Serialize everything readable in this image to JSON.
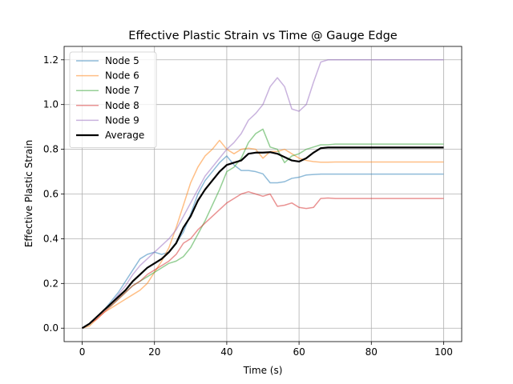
{
  "chart_data": {
    "type": "line",
    "title": "Effective Plastic Strain vs Time @ Gauge Edge",
    "xlabel": "Time (s)",
    "ylabel": "Effective Plastic Strain",
    "xlim": [
      -5,
      105
    ],
    "ylim": [
      -0.06,
      1.26
    ],
    "xticks": [
      0,
      20,
      40,
      60,
      80,
      100
    ],
    "xtick_labels": [
      "0",
      "20",
      "40",
      "60",
      "80",
      "100"
    ],
    "yticks": [
      0.0,
      0.2,
      0.4,
      0.6,
      0.8,
      1.0,
      1.2
    ],
    "ytick_labels": [
      "0.0",
      "0.2",
      "0.4",
      "0.6",
      "0.8",
      "1.0",
      "1.2"
    ],
    "grid": true,
    "legend_position": "upper-left",
    "series": [
      {
        "name": "Node 5",
        "color": "#1f77b4",
        "alpha": 0.5,
        "x": [
          0,
          2,
          4,
          6,
          8,
          10,
          12,
          14,
          16,
          18,
          20,
          22,
          24,
          26,
          28,
          30,
          32,
          34,
          36,
          38,
          40,
          42,
          44,
          46,
          48,
          50,
          52,
          54,
          56,
          58,
          60,
          62,
          64,
          66,
          68,
          70,
          75,
          80,
          85,
          90,
          95,
          100
        ],
        "y": [
          0.0,
          0.02,
          0.05,
          0.08,
          0.12,
          0.16,
          0.21,
          0.26,
          0.31,
          0.33,
          0.34,
          0.33,
          0.34,
          0.38,
          0.43,
          0.51,
          0.6,
          0.66,
          0.7,
          0.74,
          0.77,
          0.73,
          0.705,
          0.705,
          0.7,
          0.69,
          0.65,
          0.65,
          0.655,
          0.67,
          0.675,
          0.685,
          0.687,
          0.689,
          0.689,
          0.689,
          0.689,
          0.689,
          0.689,
          0.689,
          0.689,
          0.689
        ]
      },
      {
        "name": "Node 6",
        "color": "#ff7f0e",
        "alpha": 0.5,
        "x": [
          0,
          2,
          4,
          6,
          8,
          10,
          12,
          14,
          16,
          18,
          20,
          22,
          24,
          26,
          28,
          30,
          32,
          34,
          36,
          38,
          40,
          42,
          44,
          46,
          48,
          50,
          52,
          54,
          56,
          58,
          60,
          62,
          64,
          66,
          68,
          70,
          75,
          80,
          85,
          90,
          95,
          100
        ],
        "y": [
          0.0,
          0.01,
          0.04,
          0.07,
          0.09,
          0.11,
          0.13,
          0.15,
          0.17,
          0.2,
          0.25,
          0.3,
          0.36,
          0.45,
          0.55,
          0.65,
          0.72,
          0.77,
          0.8,
          0.84,
          0.8,
          0.78,
          0.8,
          0.805,
          0.8,
          0.76,
          0.79,
          0.79,
          0.8,
          0.78,
          0.76,
          0.75,
          0.745,
          0.742,
          0.742,
          0.743,
          0.743,
          0.743,
          0.743,
          0.743,
          0.743,
          0.743
        ]
      },
      {
        "name": "Node 7",
        "color": "#2ca02c",
        "alpha": 0.5,
        "x": [
          0,
          2,
          4,
          6,
          8,
          10,
          12,
          14,
          16,
          18,
          20,
          22,
          24,
          26,
          28,
          30,
          32,
          34,
          36,
          38,
          40,
          42,
          44,
          46,
          48,
          50,
          52,
          54,
          56,
          58,
          60,
          62,
          64,
          66,
          68,
          70,
          75,
          80,
          85,
          90,
          95,
          100
        ],
        "y": [
          0.0,
          0.02,
          0.05,
          0.08,
          0.1,
          0.13,
          0.16,
          0.19,
          0.21,
          0.23,
          0.25,
          0.27,
          0.29,
          0.3,
          0.32,
          0.36,
          0.42,
          0.48,
          0.55,
          0.62,
          0.7,
          0.72,
          0.76,
          0.83,
          0.87,
          0.89,
          0.81,
          0.8,
          0.74,
          0.77,
          0.78,
          0.8,
          0.81,
          0.82,
          0.82,
          0.823,
          0.823,
          0.823,
          0.823,
          0.823,
          0.823,
          0.823
        ]
      },
      {
        "name": "Node 8",
        "color": "#d62728",
        "alpha": 0.5,
        "x": [
          0,
          2,
          4,
          6,
          8,
          10,
          12,
          14,
          16,
          18,
          20,
          22,
          24,
          26,
          28,
          30,
          32,
          34,
          36,
          38,
          40,
          42,
          44,
          46,
          48,
          50,
          52,
          54,
          56,
          58,
          60,
          62,
          64,
          66,
          68,
          70,
          75,
          80,
          85,
          90,
          95,
          100
        ],
        "y": [
          0.0,
          0.02,
          0.04,
          0.07,
          0.1,
          0.13,
          0.16,
          0.19,
          0.21,
          0.24,
          0.26,
          0.28,
          0.3,
          0.33,
          0.38,
          0.4,
          0.44,
          0.47,
          0.5,
          0.53,
          0.56,
          0.58,
          0.6,
          0.61,
          0.6,
          0.59,
          0.6,
          0.545,
          0.55,
          0.56,
          0.54,
          0.535,
          0.54,
          0.58,
          0.582,
          0.58,
          0.58,
          0.58,
          0.58,
          0.58,
          0.58,
          0.58
        ]
      },
      {
        "name": "Node 9",
        "color": "#9467bd",
        "alpha": 0.5,
        "x": [
          0,
          2,
          4,
          6,
          8,
          10,
          12,
          14,
          16,
          18,
          20,
          22,
          24,
          26,
          28,
          30,
          32,
          34,
          36,
          38,
          40,
          42,
          44,
          46,
          48,
          50,
          52,
          54,
          56,
          58,
          60,
          62,
          64,
          66,
          68,
          70,
          75,
          80,
          85,
          90,
          95,
          100
        ],
        "y": [
          0.0,
          0.02,
          0.05,
          0.08,
          0.11,
          0.15,
          0.19,
          0.24,
          0.28,
          0.31,
          0.34,
          0.37,
          0.4,
          0.44,
          0.5,
          0.56,
          0.62,
          0.68,
          0.72,
          0.76,
          0.8,
          0.83,
          0.87,
          0.93,
          0.96,
          1.0,
          1.08,
          1.12,
          1.08,
          0.98,
          0.97,
          1.0,
          1.1,
          1.19,
          1.2,
          1.2,
          1.2,
          1.2,
          1.2,
          1.2,
          1.2,
          1.2
        ]
      },
      {
        "name": "Average",
        "color": "#000000",
        "alpha": 1.0,
        "x": [
          0,
          2,
          4,
          6,
          8,
          10,
          12,
          14,
          16,
          18,
          20,
          22,
          24,
          26,
          28,
          30,
          32,
          34,
          36,
          38,
          40,
          42,
          44,
          46,
          48,
          50,
          52,
          54,
          56,
          58,
          60,
          62,
          64,
          66,
          68,
          70,
          75,
          80,
          85,
          90,
          95,
          100
        ],
        "y": [
          0.0,
          0.02,
          0.05,
          0.08,
          0.11,
          0.14,
          0.17,
          0.21,
          0.24,
          0.27,
          0.29,
          0.31,
          0.34,
          0.38,
          0.45,
          0.5,
          0.57,
          0.62,
          0.66,
          0.7,
          0.73,
          0.74,
          0.75,
          0.78,
          0.785,
          0.785,
          0.787,
          0.78,
          0.765,
          0.75,
          0.745,
          0.76,
          0.785,
          0.805,
          0.808,
          0.808,
          0.808,
          0.808,
          0.808,
          0.808,
          0.808,
          0.808
        ]
      }
    ]
  }
}
